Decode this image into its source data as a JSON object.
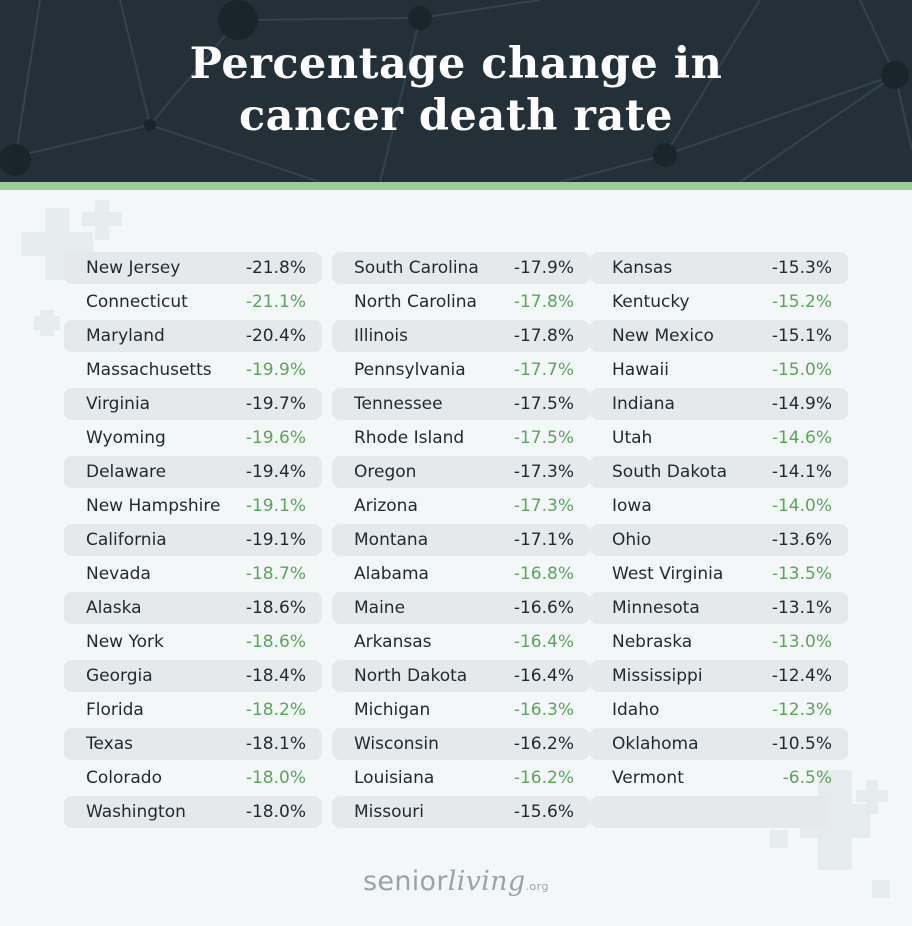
{
  "title": "Percentage change in cancer death rate",
  "logo": {
    "brand_prefix": "senior",
    "brand_script": "living",
    "brand_suffix": ".org"
  },
  "colors": {
    "header_bg": "#233038",
    "stripe": "#9ccb9c",
    "background": "#f3f7f8",
    "row_shade": "#e5e9eb",
    "value_dark": "#1e2a30",
    "value_green": "#5ea35e"
  },
  "chart_data": {
    "type": "table",
    "title": "Percentage change in cancer death rate",
    "unit": "%",
    "columns": [
      [
        {
          "state": "New Jersey",
          "value": "-21.8%",
          "highlight": false
        },
        {
          "state": "Connecticut",
          "value": "-21.1%",
          "highlight": true
        },
        {
          "state": "Maryland",
          "value": "-20.4%",
          "highlight": false
        },
        {
          "state": "Massachusetts",
          "value": "-19.9%",
          "highlight": true
        },
        {
          "state": "Virginia",
          "value": "-19.7%",
          "highlight": false
        },
        {
          "state": "Wyoming",
          "value": "-19.6%",
          "highlight": true
        },
        {
          "state": "Delaware",
          "value": "-19.4%",
          "highlight": false
        },
        {
          "state": "New Hampshire",
          "value": "-19.1%",
          "highlight": true
        },
        {
          "state": "California",
          "value": "-19.1%",
          "highlight": false
        },
        {
          "state": "Nevada",
          "value": "-18.7%",
          "highlight": true
        },
        {
          "state": "Alaska",
          "value": "-18.6%",
          "highlight": false
        },
        {
          "state": "New York",
          "value": "-18.6%",
          "highlight": true
        },
        {
          "state": "Georgia",
          "value": "-18.4%",
          "highlight": false
        },
        {
          "state": "Florida",
          "value": "-18.2%",
          "highlight": true
        },
        {
          "state": "Texas",
          "value": "-18.1%",
          "highlight": false
        },
        {
          "state": "Colorado",
          "value": "-18.0%",
          "highlight": true
        },
        {
          "state": "Washington",
          "value": "-18.0%",
          "highlight": false
        }
      ],
      [
        {
          "state": "South Carolina",
          "value": "-17.9%",
          "highlight": false
        },
        {
          "state": "North Carolina",
          "value": "-17.8%",
          "highlight": true
        },
        {
          "state": "Illinois",
          "value": "-17.8%",
          "highlight": false
        },
        {
          "state": "Pennsylvania",
          "value": "-17.7%",
          "highlight": true
        },
        {
          "state": "Tennessee",
          "value": "-17.5%",
          "highlight": false
        },
        {
          "state": "Rhode Island",
          "value": "-17.5%",
          "highlight": true
        },
        {
          "state": "Oregon",
          "value": "-17.3%",
          "highlight": false
        },
        {
          "state": "Arizona",
          "value": "-17.3%",
          "highlight": true
        },
        {
          "state": "Montana",
          "value": "-17.1%",
          "highlight": false
        },
        {
          "state": "Alabama",
          "value": "-16.8%",
          "highlight": true
        },
        {
          "state": "Maine",
          "value": "-16.6%",
          "highlight": false
        },
        {
          "state": "Arkansas",
          "value": "-16.4%",
          "highlight": true
        },
        {
          "state": "North Dakota",
          "value": "-16.4%",
          "highlight": false
        },
        {
          "state": "Michigan",
          "value": "-16.3%",
          "highlight": true
        },
        {
          "state": "Wisconsin",
          "value": "-16.2%",
          "highlight": false
        },
        {
          "state": "Louisiana",
          "value": "-16.2%",
          "highlight": true
        },
        {
          "state": "Missouri",
          "value": "-15.6%",
          "highlight": false
        }
      ],
      [
        {
          "state": "Kansas",
          "value": "-15.3%",
          "highlight": false
        },
        {
          "state": "Kentucky",
          "value": "-15.2%",
          "highlight": true
        },
        {
          "state": "New Mexico",
          "value": "-15.1%",
          "highlight": false
        },
        {
          "state": "Hawaii",
          "value": "-15.0%",
          "highlight": true
        },
        {
          "state": "Indiana",
          "value": "-14.9%",
          "highlight": false
        },
        {
          "state": "Utah",
          "value": "-14.6%",
          "highlight": true
        },
        {
          "state": "South Dakota",
          "value": "-14.1%",
          "highlight": false
        },
        {
          "state": "Iowa",
          "value": "-14.0%",
          "highlight": true
        },
        {
          "state": "Ohio",
          "value": "-13.6%",
          "highlight": false
        },
        {
          "state": "West Virginia",
          "value": "-13.5%",
          "highlight": true
        },
        {
          "state": "Minnesota",
          "value": "-13.1%",
          "highlight": false
        },
        {
          "state": "Nebraska",
          "value": "-13.0%",
          "highlight": true
        },
        {
          "state": "Mississippi",
          "value": "-12.4%",
          "highlight": false
        },
        {
          "state": "Idaho",
          "value": "-12.3%",
          "highlight": true
        },
        {
          "state": "Oklahoma",
          "value": "-10.5%",
          "highlight": false
        },
        {
          "state": "Vermont",
          "value": "-6.5%",
          "highlight": true
        }
      ]
    ]
  }
}
